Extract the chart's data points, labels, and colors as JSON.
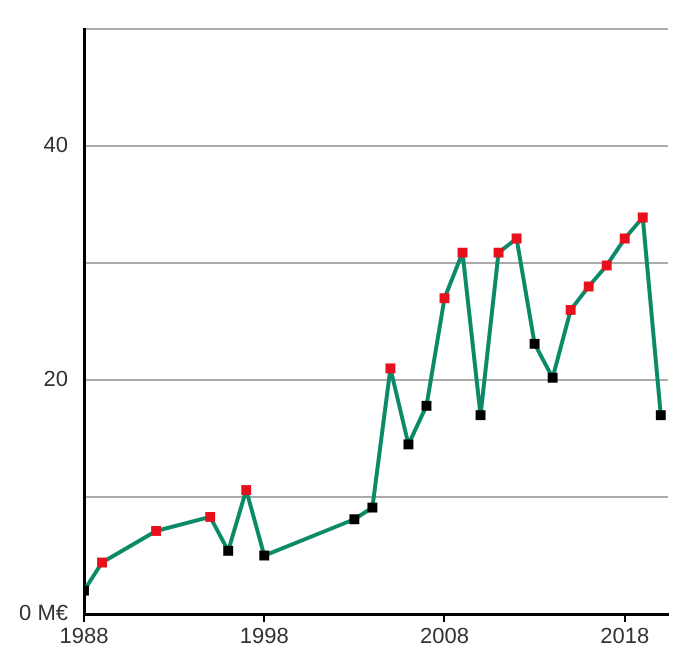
{
  "chart_data": {
    "type": "line",
    "x": [
      1988,
      1989,
      1992,
      1995,
      1996,
      1997,
      1998,
      2003,
      2004,
      2005,
      2006,
      2007,
      2008,
      2009,
      2010,
      2011,
      2012,
      2013,
      2014,
      2015,
      2016,
      2017,
      2018,
      2019,
      2020
    ],
    "series": [
      {
        "color": "#0b8a68",
        "colors": [
          "#000000",
          "#e8101c",
          "#e8101c",
          "#e8101c",
          "#000000",
          "#e8101c",
          "#000000",
          "#000000",
          "#000000",
          "#e8101c",
          "#000000",
          "#000000",
          "#e8101c",
          "#e8101c",
          "#000000",
          "#e8101c",
          "#e8101c",
          "#000000",
          "#000000",
          "#e8101c",
          "#e8101c",
          "#e8101c",
          "#e8101c",
          "#e8101c",
          "#000000"
        ],
        "values": [
          2,
          4.4,
          7.1,
          8.3,
          5.4,
          10.6,
          5,
          8.1,
          9.1,
          21,
          14.5,
          17.8,
          27,
          30.9,
          17,
          30.9,
          32.1,
          23.1,
          20.2,
          26,
          28,
          29.8,
          32.1,
          33.9,
          17
        ]
      }
    ],
    "xlim": [
      1988,
      2020.4
    ],
    "xticks": [
      1988,
      1998,
      2008,
      2018
    ],
    "ylim": [
      0,
      50
    ],
    "yticks": [
      {
        "value": 0,
        "label": "0 M€"
      },
      {
        "value": 10,
        "label": null
      },
      20,
      {
        "value": 30,
        "label": null
      },
      40,
      {
        "value": 50,
        "label": null
      }
    ],
    "grid": "y",
    "legend": false,
    "marker": "square",
    "line_style": "solid"
  }
}
